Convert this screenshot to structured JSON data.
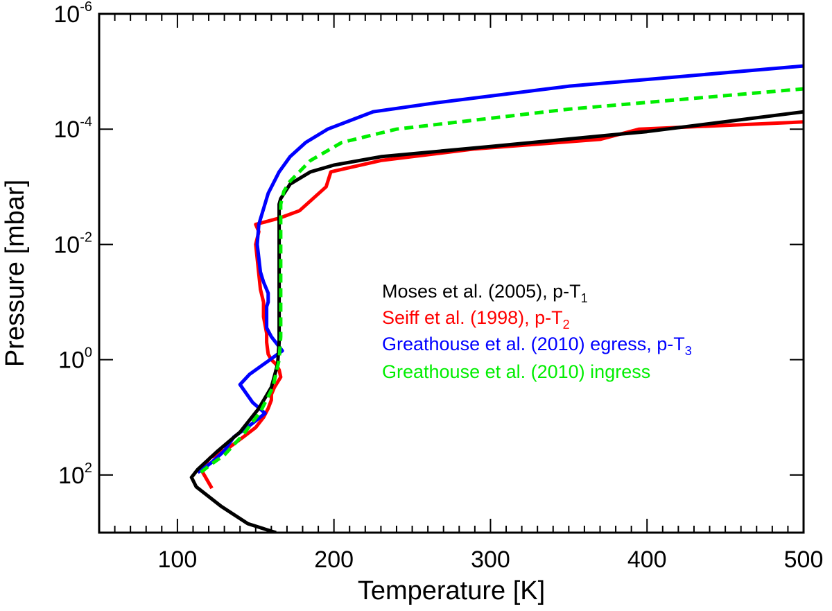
{
  "chart_data": {
    "type": "line",
    "xlabel": "Temperature [K]",
    "ylabel": "Pressure [mbar]",
    "xlim": [
      50,
      500
    ],
    "ylim": [
      1000,
      1e-06
    ],
    "yscale": "log",
    "x_ticks": [
      {
        "value": 100,
        "label": "100"
      },
      {
        "value": 200,
        "label": "200"
      },
      {
        "value": 300,
        "label": "300"
      },
      {
        "value": 400,
        "label": "400"
      },
      {
        "value": 500,
        "label": "500"
      }
    ],
    "y_ticks": [
      {
        "exp": -6,
        "base": "10",
        "sup": "-6"
      },
      {
        "exp": -4,
        "base": "10",
        "sup": "-4"
      },
      {
        "exp": -2,
        "base": "10",
        "sup": "-2"
      },
      {
        "exp": 0,
        "base": "10",
        "sup": "0"
      },
      {
        "exp": 2,
        "base": "10",
        "sup": "2"
      }
    ],
    "legend": {
      "position": "center-right",
      "entries": [
        {
          "name": "Moses et al. (2005), p-T",
          "subscript": "1",
          "color": "#000000"
        },
        {
          "name": "Seiff et al. (1998), p-T",
          "subscript": "2",
          "color": "#ff0000"
        },
        {
          "name": "Greathouse et al. (2010) egress, p-T",
          "subscript": "3",
          "color": "#0000ff"
        },
        {
          "name": "Greathouse et al. (2010) ingress",
          "subscript": "",
          "color": "#00ee00"
        }
      ]
    },
    "series": [
      {
        "name": "Seiff et al. (1998), p-T2",
        "color": "#ff0000",
        "dash": false,
        "points": [
          [
            122,
            170
          ],
          [
            118,
            110
          ],
          [
            115,
            80
          ],
          [
            121,
            50
          ],
          [
            132,
            35
          ],
          [
            142,
            22
          ],
          [
            150,
            15
          ],
          [
            155,
            10
          ],
          [
            158,
            7
          ],
          [
            160,
            5
          ],
          [
            160,
            4
          ],
          [
            162,
            3
          ],
          [
            166,
            2
          ],
          [
            165,
            1.5
          ],
          [
            163,
            1.2
          ],
          [
            160,
            1
          ],
          [
            158,
            0.8
          ],
          [
            157,
            0.5
          ],
          [
            157,
            0.35
          ],
          [
            155,
            0.18
          ],
          [
            155,
            0.1
          ],
          [
            153,
            0.06
          ],
          [
            150,
            0.01
          ],
          [
            152,
            0.006
          ],
          [
            150,
            0.0045
          ],
          [
            165,
            0.0035
          ],
          [
            178,
            0.0026
          ],
          [
            195,
            0.001
          ],
          [
            198,
            0.00055
          ],
          [
            230,
            0.00035
          ],
          [
            290,
            0.00022
          ],
          [
            370,
            0.00015
          ],
          [
            395,
            0.0001
          ],
          [
            500,
            7.5e-05
          ]
        ]
      },
      {
        "name": "Greathouse et al. (2010) egress, p-T3",
        "color": "#0000ff",
        "dash": false,
        "points": [
          [
            113,
            90
          ],
          [
            116,
            80
          ],
          [
            122,
            60
          ],
          [
            130,
            38
          ],
          [
            136,
            22
          ],
          [
            146,
            14
          ],
          [
            156,
            8.5
          ],
          [
            148,
            5.5
          ],
          [
            140,
            2.7
          ],
          [
            146,
            1.8
          ],
          [
            157,
            1.1
          ],
          [
            167,
            0.7
          ],
          [
            160,
            0.4
          ],
          [
            157,
            0.28
          ],
          [
            157,
            0.12
          ],
          [
            158,
            0.1
          ],
          [
            158,
            0.07
          ],
          [
            155,
            0.045
          ],
          [
            153,
            0.03
          ],
          [
            151,
            0.01
          ],
          [
            152,
            0.0045
          ],
          [
            158,
            0.0013
          ],
          [
            165,
            0.00055
          ],
          [
            172,
            0.0003
          ],
          [
            182,
            0.00017
          ],
          [
            196,
            0.0001
          ],
          [
            225,
            5e-05
          ],
          [
            265,
            3.5e-05
          ],
          [
            350,
            1.8e-05
          ],
          [
            500,
            8e-06
          ]
        ]
      },
      {
        "name": "Moses et al. (2005), p-T1",
        "color": "#000000",
        "dash": false,
        "points": [
          [
            163,
            1000
          ],
          [
            145,
            700
          ],
          [
            128,
            350
          ],
          [
            112,
            160
          ],
          [
            109,
            110
          ],
          [
            113,
            80
          ],
          [
            125,
            40
          ],
          [
            140,
            18
          ],
          [
            152,
            7
          ],
          [
            160,
            3
          ],
          [
            164,
            1.2
          ],
          [
            165,
            0.5
          ],
          [
            165,
            0.1
          ],
          [
            165,
            0.01
          ],
          [
            165,
            0.002
          ],
          [
            166,
            0.0016
          ],
          [
            172,
            0.0009
          ],
          [
            185,
            0.00055
          ],
          [
            200,
            0.00042
          ],
          [
            230,
            0.0003
          ],
          [
            300,
            0.0002
          ],
          [
            400,
            0.00011
          ],
          [
            500,
            5e-05
          ]
        ]
      },
      {
        "name": "Greathouse et al. (2010) ingress",
        "color": "#00ee00",
        "dash": true,
        "points": [
          [
            115,
            90
          ],
          [
            120,
            70
          ],
          [
            130,
            45
          ],
          [
            142,
            20
          ],
          [
            153,
            8
          ],
          [
            161,
            3
          ],
          [
            165,
            1
          ],
          [
            166,
            0.4
          ],
          [
            166,
            0.05
          ],
          [
            166,
            0.002
          ],
          [
            168,
            0.0012
          ],
          [
            172,
            0.0008
          ],
          [
            185,
            0.00035
          ],
          [
            205,
            0.00017
          ],
          [
            240,
            0.0001
          ],
          [
            350,
            4.5e-05
          ],
          [
            500,
            2e-05
          ]
        ]
      }
    ]
  }
}
